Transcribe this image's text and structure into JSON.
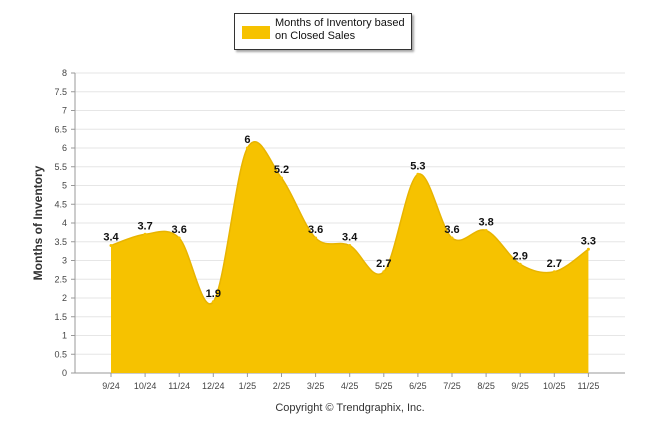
{
  "chart_data": {
    "type": "area",
    "title": "",
    "xlabel": "",
    "ylabel": "Months of Inventory",
    "categories": [
      "9/24",
      "10/24",
      "11/24",
      "12/24",
      "1/25",
      "2/25",
      "3/25",
      "4/25",
      "5/25",
      "6/25",
      "7/25",
      "8/25",
      "9/25",
      "10/25",
      "11/25"
    ],
    "series": [
      {
        "name": "Months of Inventory based on Closed Sales",
        "values": [
          3.4,
          3.7,
          3.6,
          1.9,
          6,
          5.2,
          3.6,
          3.4,
          2.7,
          5.3,
          3.6,
          3.8,
          2.9,
          2.7,
          3.3
        ],
        "color": "#F6C200"
      }
    ],
    "ylim": [
      0,
      8
    ],
    "y_ticks": [
      "0",
      "0.5",
      "1",
      "1.5",
      "2",
      "2.5",
      "3",
      "3.5",
      "4",
      "4.5",
      "5",
      "5.5",
      "6",
      "6.5",
      "7",
      "7.5",
      "8"
    ],
    "grid": true,
    "legend_position": "top-center"
  },
  "legend": {
    "line1": "Months of Inventory based",
    "line2": "on Closed Sales"
  },
  "footer": {
    "copyright": "Copyright © Trendgraphix, Inc."
  }
}
